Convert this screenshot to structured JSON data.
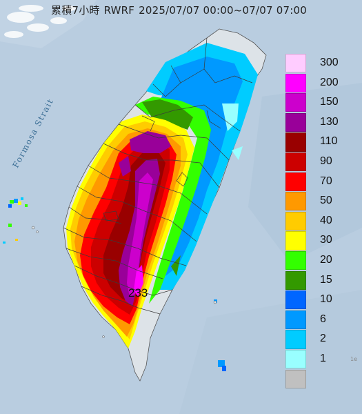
{
  "header": {
    "title_prefix": "累積7小時",
    "source": "RWRF",
    "period": "2025/07/07 00:00~07/07 07:00"
  },
  "map": {
    "sea_label": "Formosa Strait",
    "max_value_label": "233",
    "corner_mark": "1e",
    "sea_color": "#b9cde0",
    "land_color": "#dde3e8"
  },
  "legend": {
    "items": [
      {
        "label": "300",
        "color": "#ffccff"
      },
      {
        "label": "200",
        "color": "#ff00ff"
      },
      {
        "label": "150",
        "color": "#cc00cc"
      },
      {
        "label": "130",
        "color": "#990099"
      },
      {
        "label": "110",
        "color": "#990000"
      },
      {
        "label": "90",
        "color": "#cc0000"
      },
      {
        "label": "70",
        "color": "#ff0000"
      },
      {
        "label": "50",
        "color": "#ff9900"
      },
      {
        "label": "40",
        "color": "#ffcc00"
      },
      {
        "label": "30",
        "color": "#ffff00"
      },
      {
        "label": "20",
        "color": "#33ff00"
      },
      {
        "label": "15",
        "color": "#339900"
      },
      {
        "label": "10",
        "color": "#0066ff"
      },
      {
        "label": "6",
        "color": "#0099ff"
      },
      {
        "label": "2",
        "color": "#00ccff"
      },
      {
        "label": "1",
        "color": "#99ffff"
      },
      {
        "label": "",
        "color": "#c0c0c0"
      }
    ]
  }
}
